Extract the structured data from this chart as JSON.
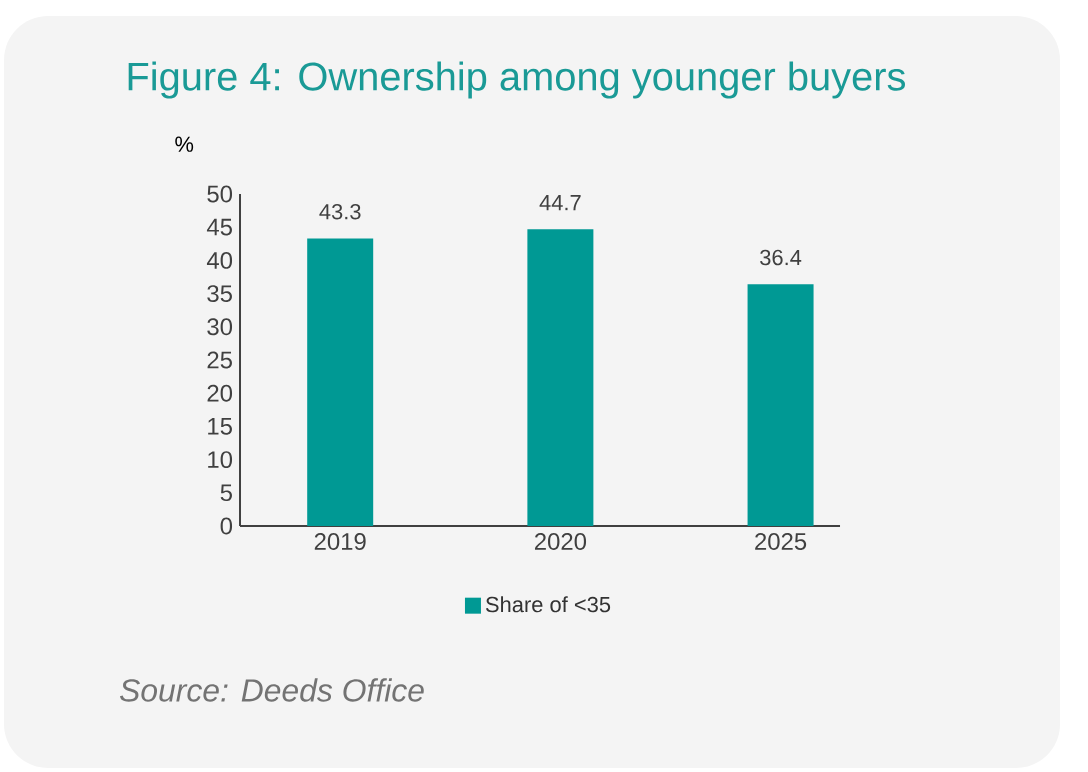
{
  "chart_data": {
    "type": "bar",
    "title": "Figure 4: Ownership among younger buyers",
    "ylabel": "%",
    "categories": [
      "2019",
      "2020",
      "2025"
    ],
    "series": [
      {
        "name": "Share of <35",
        "color": "#009994",
        "values": [
          43.3,
          44.7,
          36.4
        ]
      }
    ],
    "ylim": [
      0,
      50
    ],
    "yticks": [
      0,
      5,
      10,
      15,
      20,
      25,
      30,
      35,
      40,
      45,
      50
    ],
    "data_labels": true,
    "legend": "bottom",
    "annotations": [
      "Source: Deeds Office"
    ]
  }
}
